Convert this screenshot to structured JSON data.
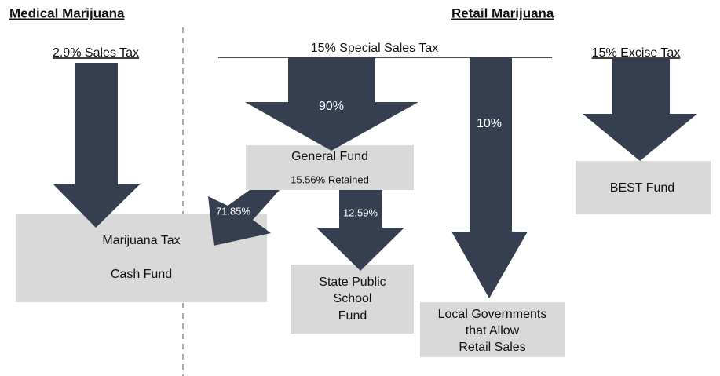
{
  "sections": [
    {
      "title": "Medical Marijuana"
    },
    {
      "title": "Retail Marijuana"
    }
  ],
  "taxes": [
    "2.9% Sales Tax",
    "15% Special Sales Tax",
    "15% Excise Tax"
  ],
  "flows": [
    "90%",
    "10%",
    "71.85%",
    "12.59%"
  ],
  "nodes": [
    {
      "lines": [
        "Marijuana Tax",
        "Cash Fund"
      ]
    },
    {
      "lines": [
        "General Fund",
        "15.56% Retained"
      ]
    },
    {
      "lines": [
        "State Public",
        "School",
        "Fund"
      ]
    },
    {
      "lines": [
        "Local Governments",
        "that Allow",
        "Retail Sales"
      ]
    },
    {
      "lines": [
        "BEST Fund"
      ]
    }
  ]
}
